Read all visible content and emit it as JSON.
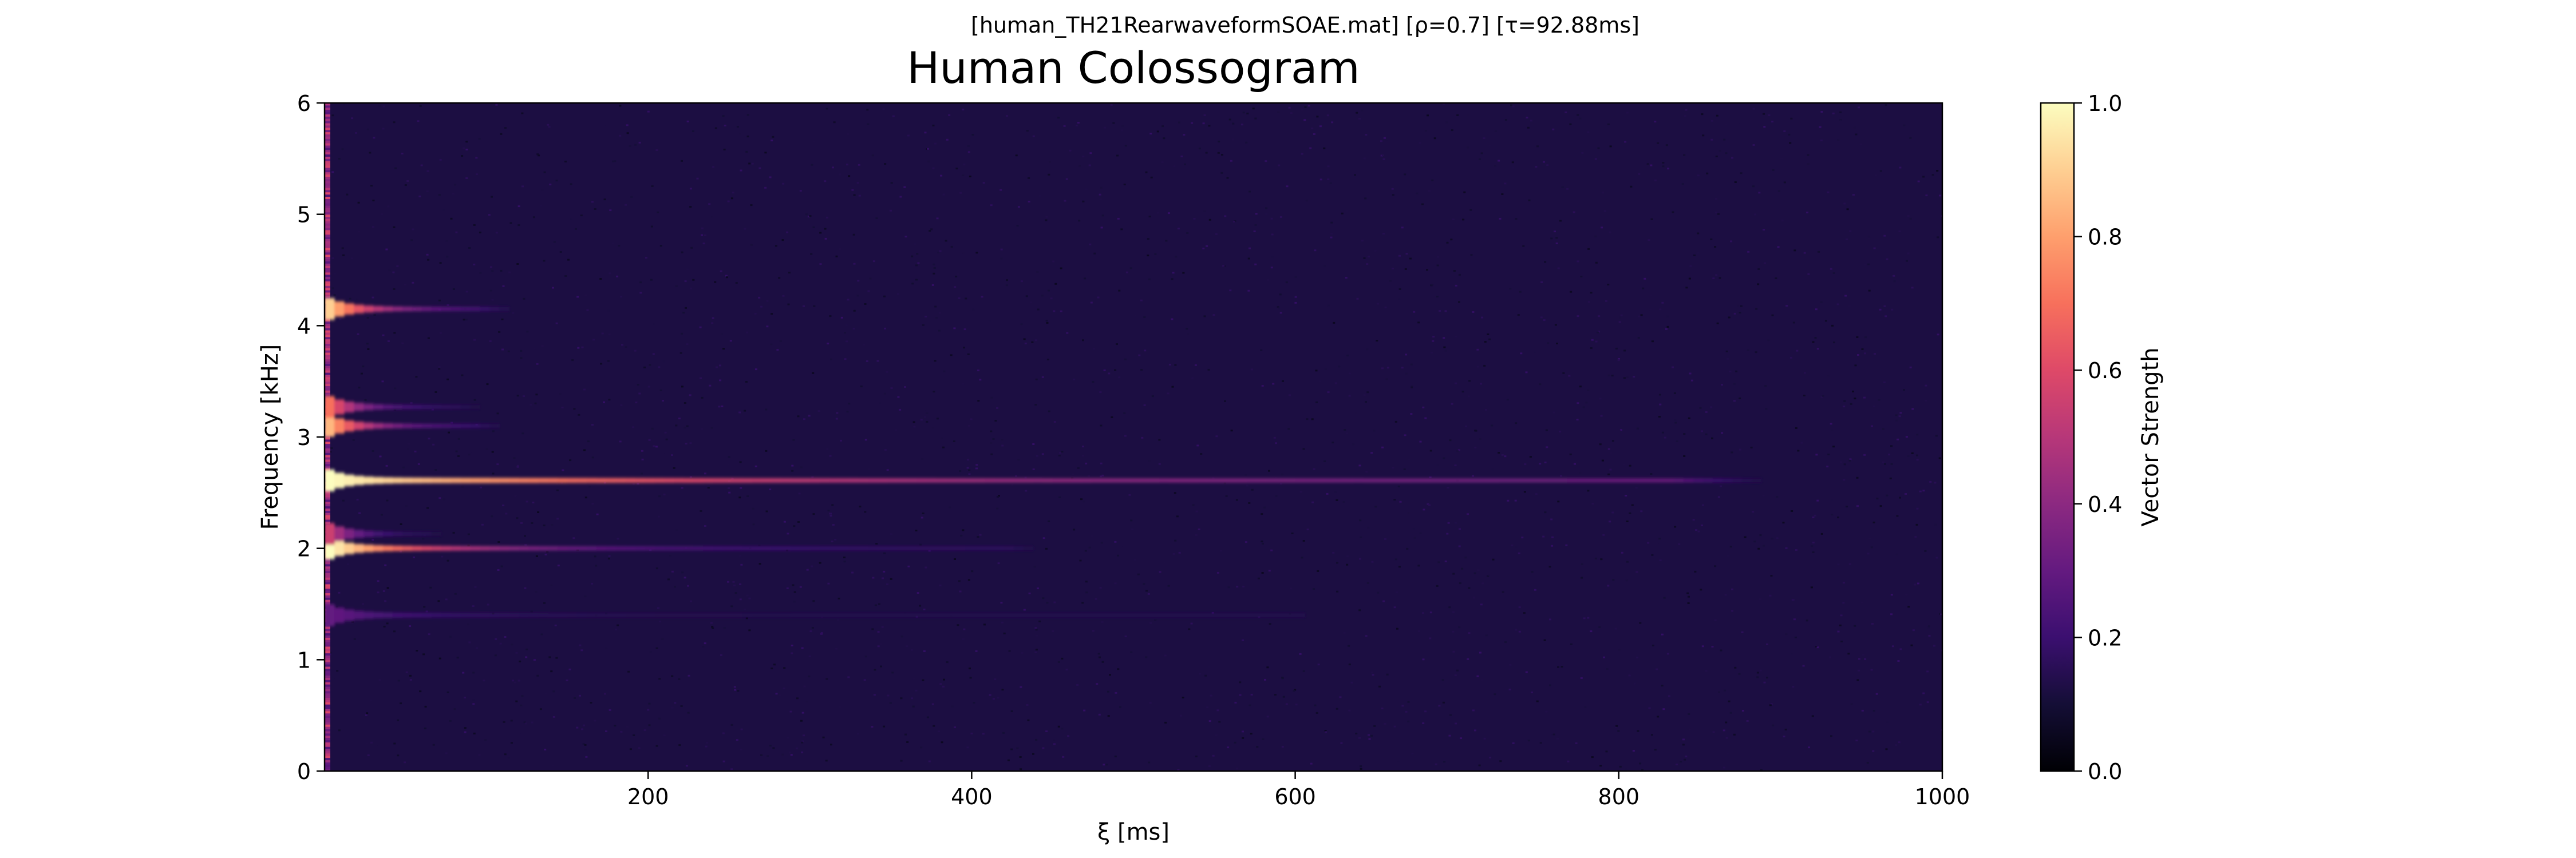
{
  "chart_data": {
    "type": "heatmap",
    "subtitle": "[human_TH21RearwaveformSOAE.mat]   [ρ=0.7]   [τ=92.88ms]",
    "title": "Human Colossogram",
    "xlabel": "ξ [ms]",
    "ylabel": "Frequency [kHz]",
    "xlim": [
      0,
      1000
    ],
    "ylim": [
      0,
      6
    ],
    "x_ticks": [
      200,
      400,
      600,
      800,
      1000
    ],
    "y_ticks": [
      0,
      1,
      2,
      3,
      4,
      5,
      6
    ],
    "colormap": "magma",
    "background_value": 0.12,
    "colorbar": {
      "label": "Vector Strength",
      "range": [
        0,
        1
      ],
      "ticks": [
        "0.0",
        "0.2",
        "0.4",
        "0.6",
        "0.8",
        "1.0"
      ]
    },
    "grid": false,
    "bands": [
      {
        "freq_khz": 2.61,
        "peak": 1.0,
        "decay_ms": 260,
        "floor": 0.3,
        "floor_until_ms": 830
      },
      {
        "freq_khz": 2.0,
        "peak": 1.0,
        "decay_ms": 90,
        "floor": 0.16,
        "floor_until_ms": 420
      },
      {
        "freq_khz": 4.15,
        "peak": 0.9,
        "decay_ms": 40,
        "floor": 0.15,
        "floor_until_ms": 90
      },
      {
        "freq_khz": 3.1,
        "peak": 0.85,
        "decay_ms": 35,
        "floor": 0.14,
        "floor_until_ms": 90
      },
      {
        "freq_khz": 3.27,
        "peak": 0.7,
        "decay_ms": 25,
        "floor": 0.14,
        "floor_until_ms": 80
      },
      {
        "freq_khz": 2.13,
        "peak": 0.55,
        "decay_ms": 20,
        "floor": 0.13,
        "floor_until_ms": 60
      },
      {
        "freq_khz": 1.4,
        "peak": 0.3,
        "decay_ms": 60,
        "floor": 0.14,
        "floor_until_ms": 600
      }
    ]
  }
}
